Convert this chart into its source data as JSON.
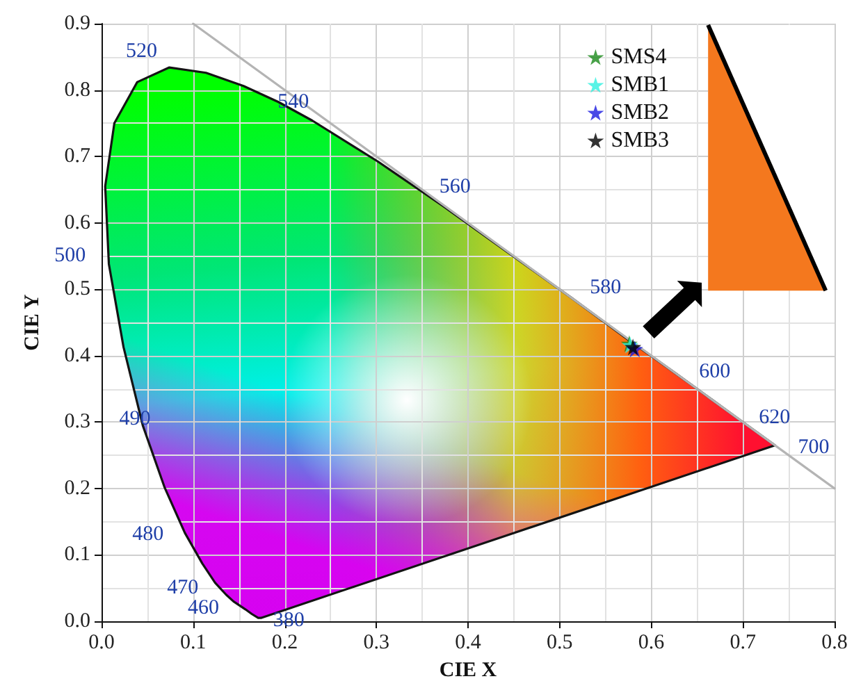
{
  "chart_data": {
    "type": "scatter",
    "xlabel": "CIE X",
    "ylabel": "CIE Y",
    "xlim": [
      0,
      0.8
    ],
    "xticks": [
      {
        "value": 0,
        "label": "0.0"
      },
      0.1,
      0.2,
      0.3,
      0.4,
      0.5,
      0.6,
      0.7,
      0.8
    ],
    "ylim": [
      0,
      0.9
    ],
    "yticks": [
      {
        "value": 0,
        "label": "0.0"
      },
      0.1,
      0.2,
      0.3,
      0.4,
      0.5,
      0.6,
      0.7,
      0.8,
      0.9
    ],
    "grid": true,
    "legend": "top right",
    "marker": "star",
    "series": [
      {
        "type": "area",
        "marker": "none",
        "color": "#141414",
        "x": [
          0.174,
          0.171,
          0.164,
          0.157,
          0.144,
          0.136,
          0.124,
          0.11,
          0.091,
          0.069,
          0.045,
          0.024,
          0.008,
          0.004,
          0.014,
          0.039,
          0.074,
          0.114,
          0.155,
          0.193,
          0.23,
          0.302,
          0.373,
          0.444,
          0.513,
          0.575,
          0.627,
          0.666,
          0.692,
          0.719,
          0.73,
          0.735,
          0.174
        ],
        "values": [
          0.005,
          0.005,
          0.011,
          0.018,
          0.03,
          0.04,
          0.058,
          0.087,
          0.133,
          0.201,
          0.295,
          0.413,
          0.538,
          0.655,
          0.75,
          0.812,
          0.834,
          0.826,
          0.806,
          0.782,
          0.754,
          0.692,
          0.625,
          0.555,
          0.487,
          0.424,
          0.373,
          0.334,
          0.308,
          0.281,
          0.27,
          0.265,
          0.005
        ]
      },
      {
        "type": "line",
        "marker": "none",
        "color": "#b4b4b4",
        "x": [
          0.1,
          0.8
        ],
        "values": [
          0.9,
          0.2
        ]
      },
      {
        "name": "SMS4",
        "color": "#1a8a1a",
        "x": [
          0.576
        ],
        "values": [
          0.418
        ]
      },
      {
        "name": "SMB1",
        "color": "#30f0e0",
        "x": [
          0.577
        ],
        "values": [
          0.416
        ]
      },
      {
        "name": "SMB2",
        "color": "#1a1ae0",
        "x": [
          0.582
        ],
        "values": [
          0.41
        ]
      },
      {
        "name": "SMB3",
        "color": "#000000",
        "x": [
          0.58
        ],
        "values": [
          0.413
        ]
      }
    ],
    "annotations": [
      {
        "text": "380",
        "x": 0.174,
        "y": 0.005
      },
      {
        "text": "460",
        "x": 0.144,
        "y": 0.03
      },
      {
        "text": "470",
        "x": 0.124,
        "y": 0.058
      },
      {
        "text": "480",
        "x": 0.091,
        "y": 0.133
      },
      {
        "text": "490",
        "x": 0.045,
        "y": 0.295
      },
      {
        "text": "500",
        "x": 0.008,
        "y": 0.538
      },
      {
        "text": "520",
        "x": 0.074,
        "y": 0.834
      },
      {
        "text": "540",
        "x": 0.23,
        "y": 0.754
      },
      {
        "text": "560",
        "x": 0.373,
        "y": 0.625
      },
      {
        "text": "580",
        "x": 0.513,
        "y": 0.487
      },
      {
        "text": "600",
        "x": 0.627,
        "y": 0.373
      },
      {
        "text": "620",
        "x": 0.692,
        "y": 0.308
      },
      {
        "text": "700",
        "x": 0.735,
        "y": 0.265
      }
    ]
  }
}
